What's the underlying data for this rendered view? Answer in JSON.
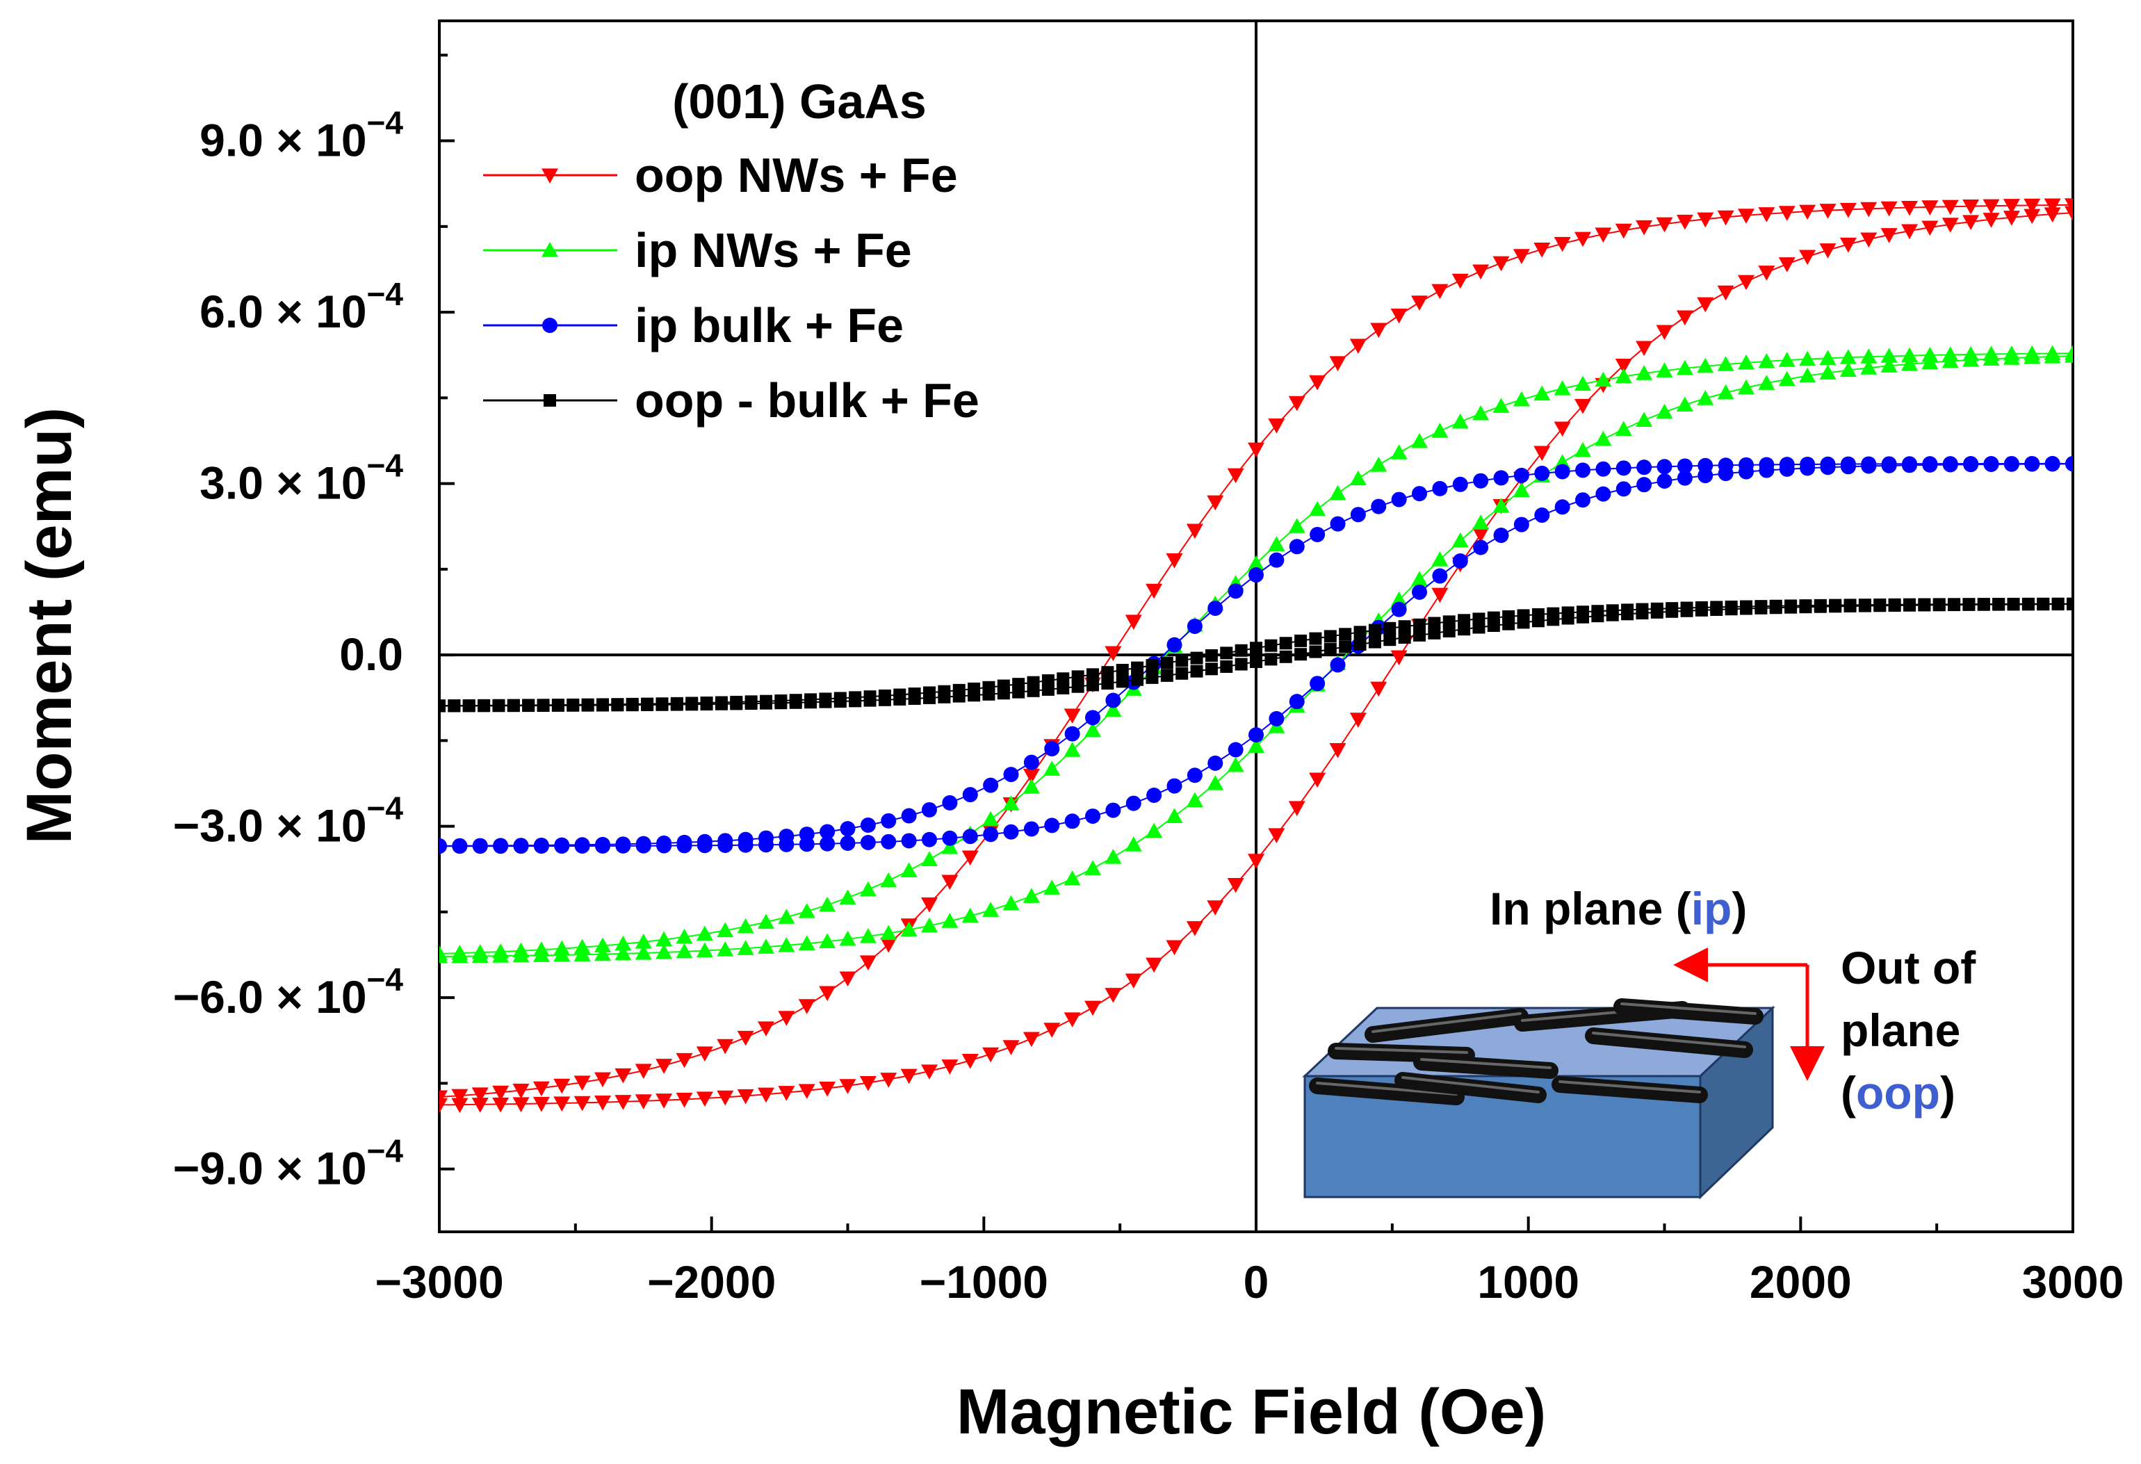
{
  "chart_data": {
    "type": "line",
    "title": "",
    "xlabel": "Magnetic Field (Oe)",
    "ylabel": "Moment (emu)",
    "xlim": [
      -3000,
      3000
    ],
    "ylim": [
      -0.00101,
      0.00111
    ],
    "x_ticks": [
      -3000,
      -2000,
      -1000,
      0,
      1000,
      2000,
      3000
    ],
    "x_tick_labels": [
      "−3000",
      "−2000",
      "−1000",
      "0",
      "1000",
      "2000",
      "3000"
    ],
    "y_ticks": [
      {
        "value": 0.0009,
        "mantissa": "9.0 × 10",
        "exp": "−4"
      },
      {
        "value": 0.0006,
        "mantissa": "6.0 × 10",
        "exp": "−4"
      },
      {
        "value": 0.0003,
        "mantissa": "3.0 × 10",
        "exp": "−4"
      },
      {
        "value": 0.0,
        "mantissa": "0.0",
        "exp": ""
      },
      {
        "value": -0.0003,
        "mantissa": "−3.0 × 10",
        "exp": "−4"
      },
      {
        "value": -0.0006,
        "mantissa": "−6.0 × 10",
        "exp": "−4"
      },
      {
        "value": -0.0009,
        "mantissa": "−9.0 × 10",
        "exp": "−4"
      }
    ],
    "legend_title": "(001) GaAs",
    "legend_position": "top-left",
    "series": [
      {
        "name": "oop NWs + Fe",
        "color": "#ff0000",
        "marker": "triangle-down",
        "Ms": 0.00079,
        "Mr": 0.00036,
        "Hc": 530,
        "H0": 700,
        "points": 80
      },
      {
        "name": "ip NWs + Fe",
        "color": "#00ff00",
        "marker": "triangle-up",
        "Ms": 0.00053,
        "Mr": 0.00016,
        "Hc": 330,
        "H0": 850,
        "points": 80
      },
      {
        "name": "ip bulk + Fe",
        "color": "#0000ff",
        "marker": "circle",
        "Ms": 0.000335,
        "Mr": 0.00014,
        "Hc": 340,
        "H0": 750,
        "points": 80
      },
      {
        "name": "oop - bulk + Fe",
        "color": "#000000",
        "marker": "square",
        "Ms": 9e-05,
        "Mr": 1.2e-05,
        "Hc": 150,
        "H0": 1800,
        "points": 110
      }
    ],
    "inset": {
      "ip_label": "In plane (",
      "ip_abbr": "ip",
      "ip_close": ")",
      "oop_line1": "Out of",
      "oop_line2": "plane",
      "oop_open": "(",
      "oop_abbr": "oop",
      "oop_close": ")",
      "substrate_color": "#4f81bd",
      "arrow_color": "#ff0000",
      "abbr_color": "#3f5fd1"
    }
  }
}
